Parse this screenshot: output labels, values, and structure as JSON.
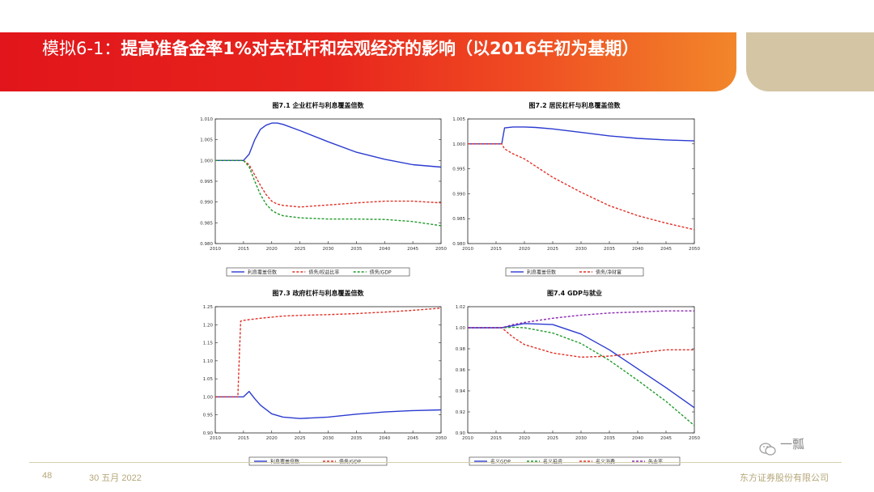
{
  "header": {
    "title_prefix": "模拟6-1：",
    "title_main": "提高准备金率1%对去杠杆和宏观经济的影响（以2016年初为基期）"
  },
  "footer": {
    "page_number": "48",
    "date": "30 五月 2022",
    "company": "东方证券股份有限公司"
  },
  "watermark": {
    "text": "一瓢",
    "icon": "wechat-icon"
  },
  "colors": {
    "blue": "#2b3bd0",
    "red": "#e03127",
    "green": "#1f9a2a",
    "purple": "#8a2bb0",
    "banner": "#e1151b"
  },
  "chart_data": [
    {
      "id": "fig71",
      "type": "line",
      "title": "图7.1  企业杠杆与利息覆盖倍数",
      "x": [
        2010,
        2015,
        2016,
        2017,
        2018,
        2019,
        2020,
        2021,
        2022,
        2025,
        2030,
        2035,
        2040,
        2045,
        2050
      ],
      "xticks": [
        "2010",
        "2015",
        "2020",
        "2025",
        "2030",
        "2035",
        "2040",
        "2045",
        "2050"
      ],
      "xlim": [
        2010,
        2050
      ],
      "ylim": [
        0.98,
        1.01
      ],
      "yticks": [
        "1.010",
        "1.005",
        "1.000",
        "0.995",
        "0.990",
        "0.985",
        "0.980"
      ],
      "series": [
        {
          "name": "利息覆盖倍数",
          "color": "blue",
          "style": "solid",
          "values": [
            1.0,
            1.0,
            1.0015,
            1.005,
            1.0075,
            1.0085,
            1.009,
            1.009,
            1.0087,
            1.0072,
            1.0045,
            1.002,
            1.0003,
            0.999,
            0.9984
          ]
        },
        {
          "name": "债务/权益比率",
          "color": "red",
          "style": "dashed",
          "values": [
            1.0,
            1.0,
            0.999,
            0.9965,
            0.994,
            0.9918,
            0.9902,
            0.9895,
            0.9892,
            0.9888,
            0.9893,
            0.9898,
            0.9902,
            0.9902,
            0.9898
          ]
        },
        {
          "name": "债务/GDP",
          "color": "green",
          "style": "dashed",
          "values": [
            1.0,
            1.0,
            0.9985,
            0.995,
            0.9918,
            0.9895,
            0.988,
            0.9872,
            0.9867,
            0.9862,
            0.9859,
            0.9859,
            0.9858,
            0.9853,
            0.9843
          ]
        }
      ]
    },
    {
      "id": "fig72",
      "type": "line",
      "title": "图7.2  居民杠杆与利息覆盖倍数",
      "x": [
        2010,
        2015,
        2016,
        2016.5,
        2018,
        2020,
        2022,
        2025,
        2030,
        2035,
        2040,
        2045,
        2050
      ],
      "xticks": [
        "2010",
        "2015",
        "2020",
        "2025",
        "2030",
        "2035",
        "2040",
        "2045",
        "2050"
      ],
      "xlim": [
        2010,
        2050
      ],
      "ylim": [
        0.98,
        1.005
      ],
      "yticks": [
        "1.005",
        "1.000",
        "0.995",
        "0.990",
        "0.985",
        "0.980"
      ],
      "series": [
        {
          "name": "利息覆盖倍数",
          "color": "blue",
          "style": "solid",
          "values": [
            1.0,
            1.0,
            1.0,
            1.0032,
            1.0034,
            1.0034,
            1.0033,
            1.003,
            1.0023,
            1.0016,
            1.0011,
            1.0008,
            1.0006
          ]
        },
        {
          "name": "债务/净财富",
          "color": "red",
          "style": "dashed",
          "values": [
            1.0,
            1.0,
            1.0,
            0.999,
            0.998,
            0.997,
            0.9955,
            0.9933,
            0.9903,
            0.9876,
            0.9856,
            0.9841,
            0.9828
          ]
        }
      ]
    },
    {
      "id": "fig73",
      "type": "line",
      "title": "图7.3  政府杠杆与利息覆盖倍数",
      "x": [
        2010,
        2014,
        2014.5,
        2015,
        2016,
        2017,
        2018,
        2020,
        2022,
        2025,
        2030,
        2035,
        2040,
        2045,
        2050
      ],
      "xticks": [
        "2010",
        "2015",
        "2020",
        "2025",
        "2030",
        "2035",
        "2040",
        "2045",
        "2050"
      ],
      "xlim": [
        2010,
        2050
      ],
      "ylim": [
        0.9,
        1.25
      ],
      "yticks": [
        "1.25",
        "1.20",
        "1.15",
        "1.10",
        "1.05",
        "1.00",
        "0.95",
        "0.90"
      ],
      "series": [
        {
          "name": "利息覆盖倍数",
          "color": "blue",
          "style": "solid",
          "values": [
            1.0,
            1.0,
            1.0,
            1.0,
            1.015,
            0.995,
            0.977,
            0.953,
            0.944,
            0.94,
            0.944,
            0.952,
            0.958,
            0.962,
            0.964
          ]
        },
        {
          "name": "债务/GDP",
          "color": "red",
          "style": "dashed",
          "values": [
            1.0,
            1.0,
            1.21,
            1.212,
            1.214,
            1.216,
            1.218,
            1.221,
            1.224,
            1.226,
            1.228,
            1.231,
            1.235,
            1.24,
            1.246
          ]
        }
      ]
    },
    {
      "id": "fig74",
      "type": "line",
      "title": "图7.4  GDP与就业",
      "x": [
        2010,
        2015,
        2016,
        2018,
        2020,
        2025,
        2030,
        2035,
        2040,
        2045,
        2050
      ],
      "xticks": [
        "2010",
        "2015",
        "2020",
        "2025",
        "2030",
        "2035",
        "2040",
        "2045",
        "2050"
      ],
      "xlim": [
        2010,
        2050
      ],
      "ylim": [
        0.9,
        1.02
      ],
      "yticks": [
        "1.02",
        "1.00",
        "0.98",
        "0.96",
        "0.94",
        "0.92",
        "0.90"
      ],
      "series": [
        {
          "name": "名义GDP",
          "color": "blue",
          "style": "solid",
          "values": [
            1.0,
            1.0,
            1.0,
            1.002,
            1.004,
            1.003,
            0.994,
            0.979,
            0.961,
            0.943,
            0.924
          ]
        },
        {
          "name": "名义投资",
          "color": "green",
          "style": "dashed",
          "values": [
            1.0,
            1.0,
            1.0,
            1.0005,
            1.0,
            0.995,
            0.985,
            0.969,
            0.95,
            0.93,
            0.907
          ]
        },
        {
          "name": "名义消费",
          "color": "red",
          "style": "dashed",
          "values": [
            1.0,
            1.0,
            1.0,
            0.991,
            0.984,
            0.976,
            0.972,
            0.973,
            0.976,
            0.979,
            0.979
          ]
        },
        {
          "name": "失业率",
          "color": "purple",
          "style": "dashed",
          "values": [
            1.0,
            1.0,
            1.0,
            1.003,
            1.005,
            1.009,
            1.012,
            1.014,
            1.015,
            1.016,
            1.016
          ]
        }
      ]
    }
  ]
}
